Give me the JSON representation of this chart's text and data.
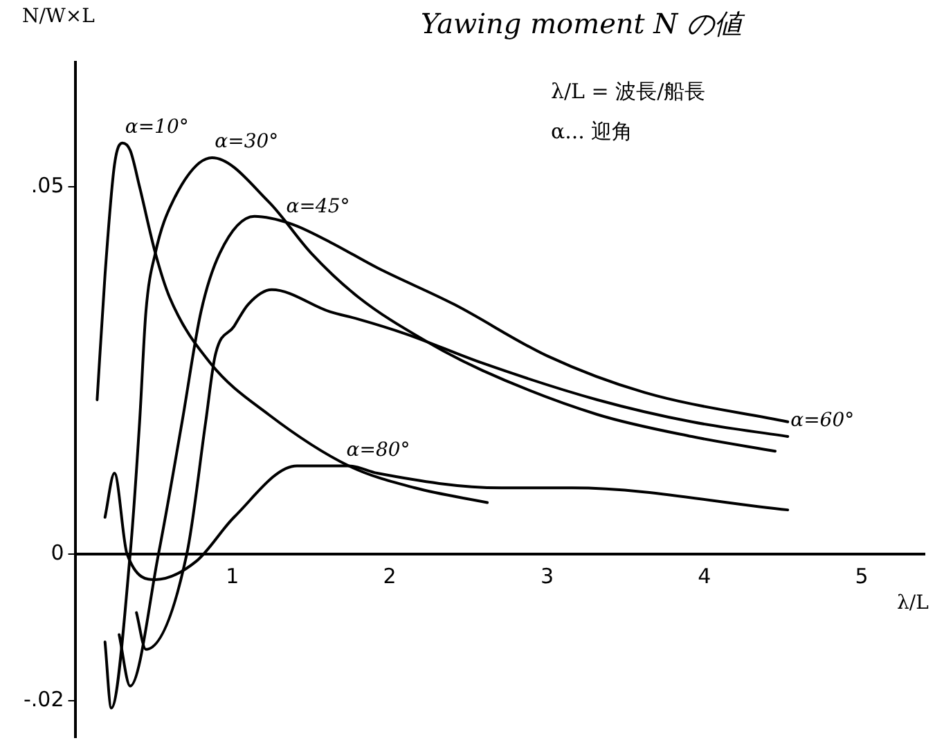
{
  "chart_data": {
    "type": "line",
    "title": "Yawing moment N の値",
    "xlabel": "λ/L",
    "ylabel": "N/W×L",
    "annotations": [
      "λ/L = 波長/船長",
      "α... 迎角"
    ],
    "xlim": [
      0,
      5.4
    ],
    "ylim": [
      -0.025,
      0.067
    ],
    "xticks": [
      1,
      2,
      3,
      4,
      5
    ],
    "yticks": [
      {
        "value": -0.02,
        "label": "-.02"
      },
      {
        "value": 0,
        "label": "0"
      },
      {
        "value": 0.05,
        "label": ".05"
      }
    ],
    "grid": false,
    "legend": false,
    "marker": "none",
    "line_style": "solid",
    "series": [
      {
        "name": "α=10°",
        "color": "#000000",
        "x": [
          0.14,
          0.19,
          0.25,
          0.3,
          0.35,
          0.41,
          0.51,
          0.6,
          0.86,
          1.23,
          1.74,
          2.16,
          2.62
        ],
        "values": [
          0.021,
          0.038,
          0.053,
          0.056,
          0.055,
          0.05,
          0.041,
          0.035,
          0.026,
          0.019,
          0.012,
          0.009,
          0.007
        ]
      },
      {
        "name": "α=30°",
        "color": "#000000",
        "x": [
          0.19,
          0.23,
          0.35,
          0.41,
          0.45,
          0.51,
          0.62,
          0.87,
          1.23,
          1.5,
          1.8,
          2.23,
          2.59,
          3.32,
          3.92,
          4.45
        ],
        "values": [
          -0.012,
          -0.021,
          0,
          0.018,
          0.033,
          0.041,
          0.048,
          0.054,
          0.048,
          0.041,
          0.035,
          0.029,
          0.025,
          0.019,
          0.016,
          0.014
        ]
      },
      {
        "name": "α=45°",
        "color": "#000000",
        "x": [
          0.28,
          0.35,
          0.53,
          0.68,
          0.8,
          0.92,
          1.14,
          1.37,
          1.62,
          1.92,
          2.41,
          3.0,
          3.62,
          4.53
        ],
        "values": [
          -0.011,
          -0.018,
          0,
          0.018,
          0.033,
          0.041,
          0.046,
          0.045,
          0.0425,
          0.039,
          0.034,
          0.027,
          0.022,
          0.018
        ]
      },
      {
        "name": "α=60°",
        "color": "#000000",
        "x": [
          0.39,
          0.45,
          0.71,
          0.83,
          0.89,
          1.01,
          1.1,
          1.25,
          1.62,
          1.8,
          2.1,
          2.59,
          3.32,
          3.92,
          4.53
        ],
        "values": [
          -0.008,
          -0.013,
          0,
          0.018,
          0.027,
          0.031,
          0.034,
          0.036,
          0.033,
          0.032,
          0.03,
          0.026,
          0.021,
          0.018,
          0.016
        ]
      },
      {
        "name": "α=80°",
        "color": "#000000",
        "x": [
          0.19,
          0.25,
          0.33,
          0.51,
          0.77,
          1.01,
          1.41,
          1.74,
          1.92,
          2.71,
          3.16,
          4.53
        ],
        "values": [
          0.005,
          0.011,
          0,
          -0.0035,
          -0.001,
          0.005,
          0.012,
          0.012,
          0.011,
          0.009,
          0.009,
          0.006
        ]
      }
    ]
  }
}
